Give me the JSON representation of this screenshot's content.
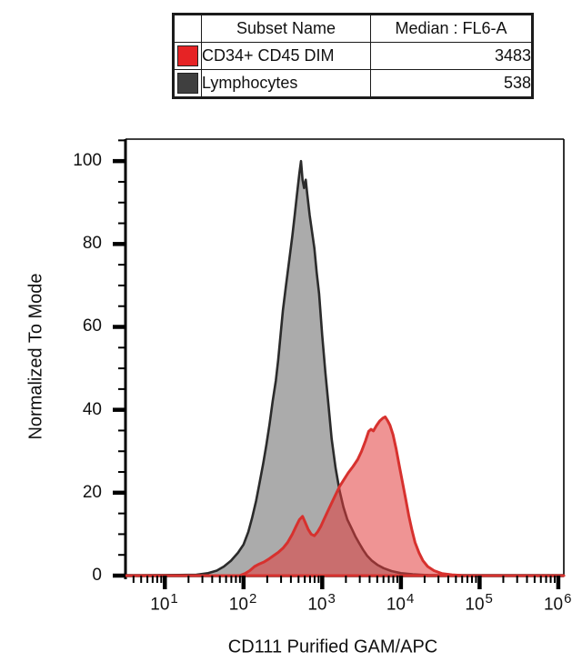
{
  "table": {
    "headers": [
      "Subset Name",
      "Median : FL6-A"
    ],
    "rows": [
      {
        "swatch_color": "#e62325",
        "name": "CD34+ CD45 DIM",
        "median": "3483"
      },
      {
        "swatch_color": "#3f3f3f",
        "name": "Lymphocytes",
        "median": "538"
      }
    ]
  },
  "chart_data": {
    "type": "area",
    "subtype": "flow-cytometry-histogram-overlay",
    "title": "",
    "xlabel": "CD111 Purified GAM/APC",
    "ylabel": "Normalized To Mode",
    "x_scale": "log10",
    "xlim_exponents": [
      0.5,
      6.07
    ],
    "x_major_exponents": [
      1,
      2,
      3,
      4,
      5,
      6
    ],
    "x_tick_base": "10",
    "ylim": [
      0,
      105.3
    ],
    "y_major_ticks": [
      0,
      20,
      40,
      60,
      80,
      100
    ],
    "y_minor_tick_step": 5,
    "grid": false,
    "legend_position": "table-above",
    "frame_color": "#000000",
    "series": [
      {
        "name": "Lymphocytes",
        "data_name": "lymphocytes-curve",
        "median": 538,
        "stroke": "#2b2b2b",
        "stroke_width": 2.6,
        "fill": "#ababab",
        "fill_opacity": 1,
        "points": [
          [
            0.5,
            0
          ],
          [
            1.4,
            0.2
          ],
          [
            1.55,
            0.6
          ],
          [
            1.66,
            1.2
          ],
          [
            1.75,
            2.2
          ],
          [
            1.84,
            3.6
          ],
          [
            1.93,
            5.5
          ],
          [
            2.0,
            7.5
          ],
          [
            2.06,
            10.5
          ],
          [
            2.11,
            14
          ],
          [
            2.16,
            18
          ],
          [
            2.2,
            22
          ],
          [
            2.25,
            27
          ],
          [
            2.29,
            31.5
          ],
          [
            2.33,
            36.5
          ],
          [
            2.37,
            42
          ],
          [
            2.41,
            47
          ],
          [
            2.44,
            52
          ],
          [
            2.47,
            58
          ],
          [
            2.5,
            64
          ],
          [
            2.54,
            70
          ],
          [
            2.58,
            76
          ],
          [
            2.62,
            82
          ],
          [
            2.65,
            87
          ],
          [
            2.68,
            92
          ],
          [
            2.71,
            97
          ],
          [
            2.73,
            100
          ],
          [
            2.75,
            95.5
          ],
          [
            2.77,
            93.5
          ],
          [
            2.79,
            95.5
          ],
          [
            2.81,
            92
          ],
          [
            2.84,
            87
          ],
          [
            2.87,
            83
          ],
          [
            2.9,
            79
          ],
          [
            2.93,
            73
          ],
          [
            2.96,
            68
          ],
          [
            3.0,
            58
          ],
          [
            3.04,
            49
          ],
          [
            3.08,
            41
          ],
          [
            3.12,
            33
          ],
          [
            3.17,
            26
          ],
          [
            3.22,
            20.5
          ],
          [
            3.27,
            16.5
          ],
          [
            3.32,
            13.5
          ],
          [
            3.37,
            11.5
          ],
          [
            3.42,
            9.5
          ],
          [
            3.47,
            7.8
          ],
          [
            3.52,
            6.2
          ],
          [
            3.57,
            4.8
          ],
          [
            3.63,
            3.6
          ],
          [
            3.7,
            2.6
          ],
          [
            3.78,
            1.8
          ],
          [
            3.88,
            1.1
          ],
          [
            4.0,
            0.6
          ],
          [
            4.15,
            0.3
          ],
          [
            4.35,
            0.1
          ],
          [
            4.6,
            0
          ],
          [
            6.07,
            0
          ]
        ]
      },
      {
        "name": "CD34+ CD45 DIM",
        "data_name": "cd34-cd45-dim-curve",
        "median": 3483,
        "stroke": "#d7312e",
        "stroke_width": 3,
        "fill": "#e13c3c",
        "fill_opacity": 0.55,
        "points": [
          [
            0.5,
            0
          ],
          [
            1.95,
            0
          ],
          [
            2.02,
            0.5
          ],
          [
            2.08,
            1.2
          ],
          [
            2.14,
            2.2
          ],
          [
            2.2,
            2.8
          ],
          [
            2.26,
            3.3
          ],
          [
            2.32,
            4.0
          ],
          [
            2.38,
            4.8
          ],
          [
            2.44,
            5.6
          ],
          [
            2.5,
            6.6
          ],
          [
            2.56,
            8.0
          ],
          [
            2.62,
            10.0
          ],
          [
            2.67,
            12.0
          ],
          [
            2.71,
            13.5
          ],
          [
            2.75,
            14.3
          ],
          [
            2.78,
            13.0
          ],
          [
            2.82,
            11.2
          ],
          [
            2.86,
            10.0
          ],
          [
            2.9,
            9.6
          ],
          [
            2.94,
            10.5
          ],
          [
            2.98,
            11.8
          ],
          [
            3.02,
            13.5
          ],
          [
            3.07,
            15.5
          ],
          [
            3.12,
            17.5
          ],
          [
            3.17,
            19.5
          ],
          [
            3.22,
            21.5
          ],
          [
            3.27,
            23.0
          ],
          [
            3.33,
            24.8
          ],
          [
            3.39,
            26.3
          ],
          [
            3.45,
            28.0
          ],
          [
            3.5,
            30.0
          ],
          [
            3.55,
            32.5
          ],
          [
            3.59,
            34.8
          ],
          [
            3.62,
            35.3
          ],
          [
            3.65,
            34.9
          ],
          [
            3.69,
            36.2
          ],
          [
            3.73,
            37.3
          ],
          [
            3.77,
            38.0
          ],
          [
            3.8,
            38.3
          ],
          [
            3.83,
            37.4
          ],
          [
            3.86,
            36.3
          ],
          [
            3.9,
            34.0
          ],
          [
            3.94,
            30.5
          ],
          [
            3.98,
            26.5
          ],
          [
            4.02,
            22.5
          ],
          [
            4.06,
            18.5
          ],
          [
            4.1,
            14.5
          ],
          [
            4.14,
            11.0
          ],
          [
            4.18,
            8.0
          ],
          [
            4.23,
            5.5
          ],
          [
            4.28,
            3.6
          ],
          [
            4.34,
            2.2
          ],
          [
            4.42,
            1.2
          ],
          [
            4.52,
            0.5
          ],
          [
            4.65,
            0.2
          ],
          [
            4.8,
            0
          ],
          [
            6.07,
            0
          ]
        ]
      }
    ]
  }
}
